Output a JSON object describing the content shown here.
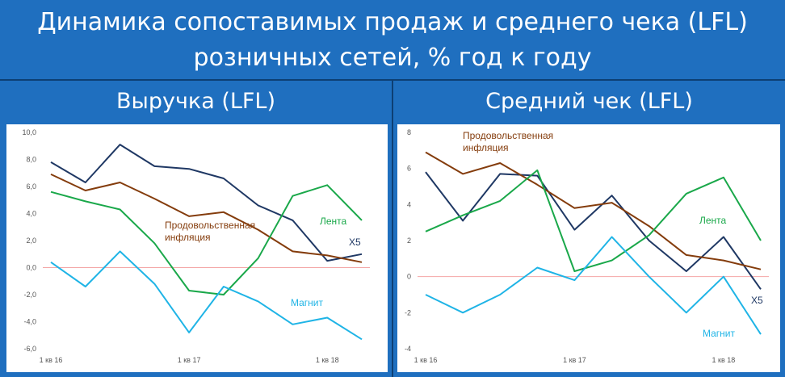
{
  "title": {
    "line1": "Динамика сопоставимых продаж и среднего чека (LFL)",
    "line2": "розничных сетей, % год к году"
  },
  "colors": {
    "header_bg": "#1f6fbf",
    "divider": "#0d3f73",
    "X5": "#1f3864",
    "inflation": "#843c0c",
    "Лента": "#1aa84a",
    "Магнит": "#1fb4e6",
    "zero_line": "#f4a6a6"
  },
  "chart_data": [
    {
      "type": "line",
      "title": "Выручка (LFL)",
      "x": [
        "1 кв 16",
        "2 кв 16",
        "3 кв 16",
        "4 кв 16",
        "1 кв 17",
        "2 кв 17",
        "3 кв 17",
        "4 кв 17",
        "1 кв 18",
        "2 кв 18"
      ],
      "x_tick_labels": [
        "1 кв 16",
        "",
        "",
        "",
        "1 кв 17",
        "",
        "",
        "",
        "1 кв 18",
        ""
      ],
      "y_ticks": [
        "10,0",
        "8,0",
        "6,0",
        "4,0",
        "2,0",
        "0,0",
        "-2,0",
        "-4,0",
        "-6,0"
      ],
      "ylim": [
        -6,
        10
      ],
      "grid": false,
      "series": [
        {
          "name": "X5",
          "color": "#1f3864",
          "values": [
            7.8,
            6.3,
            9.1,
            7.5,
            7.3,
            6.6,
            4.6,
            3.5,
            0.5,
            1.0
          ]
        },
        {
          "name": "Продовольственная инфляция",
          "color": "#843c0c",
          "values": [
            6.9,
            5.7,
            6.3,
            5.1,
            3.8,
            4.1,
            2.8,
            1.2,
            0.9,
            0.4
          ]
        },
        {
          "name": "Лента",
          "color": "#1aa84a",
          "values": [
            5.6,
            4.9,
            4.3,
            1.8,
            -1.7,
            -2.0,
            0.7,
            5.3,
            6.1,
            3.5
          ]
        },
        {
          "name": "Магнит",
          "color": "#1fb4e6",
          "values": [
            0.4,
            -1.4,
            1.2,
            -1.2,
            -4.8,
            -1.4,
            -2.5,
            -4.2,
            -3.7,
            -5.3
          ]
        }
      ],
      "labels": [
        {
          "series": "Продовольственная инфляция",
          "lines": [
            "Продовольственная",
            "инфляция"
          ]
        },
        {
          "series": "Лента",
          "lines": [
            "Лента"
          ]
        },
        {
          "series": "X5",
          "lines": [
            "X5"
          ]
        },
        {
          "series": "Магнит",
          "lines": [
            "Магнит"
          ]
        }
      ]
    },
    {
      "type": "line",
      "title": "Средний чек (LFL)",
      "x": [
        "1 кв 16",
        "2 кв 16",
        "3 кв 16",
        "4 кв 16",
        "1 кв 17",
        "2 кв 17",
        "3 кв 17",
        "4 кв 17",
        "1 кв 18",
        "2 кв 18"
      ],
      "x_tick_labels": [
        "1 кв 16",
        "",
        "",
        "",
        "1 кв 17",
        "",
        "",
        "",
        "1 кв 18",
        ""
      ],
      "y_ticks": [
        "8",
        "6",
        "4",
        "2",
        "0",
        "-2",
        "-4"
      ],
      "ylim": [
        -4,
        8
      ],
      "grid": false,
      "series": [
        {
          "name": "X5",
          "color": "#1f3864",
          "values": [
            5.8,
            3.1,
            5.7,
            5.6,
            2.6,
            4.5,
            2.0,
            0.3,
            2.2,
            -0.7
          ]
        },
        {
          "name": "Продовольственная инфляция",
          "color": "#843c0c",
          "values": [
            6.9,
            5.7,
            6.3,
            5.1,
            3.8,
            4.1,
            2.8,
            1.2,
            0.9,
            0.4
          ]
        },
        {
          "name": "Лента",
          "color": "#1aa84a",
          "values": [
            2.5,
            3.4,
            4.2,
            5.9,
            0.3,
            0.9,
            2.3,
            4.6,
            5.5,
            2.0
          ]
        },
        {
          "name": "Магнит",
          "color": "#1fb4e6",
          "values": [
            -1.0,
            -2.0,
            -1.0,
            0.5,
            -0.2,
            2.2,
            0.0,
            -2.0,
            0.0,
            -3.2
          ]
        }
      ],
      "labels": [
        {
          "series": "Продовольственная инфляция",
          "lines": [
            "Продовольственная",
            "инфляция"
          ]
        },
        {
          "series": "Лента",
          "lines": [
            "Лента"
          ]
        },
        {
          "series": "X5",
          "lines": [
            "X5"
          ]
        },
        {
          "series": "Магнит",
          "lines": [
            "Магнит"
          ]
        }
      ]
    }
  ]
}
